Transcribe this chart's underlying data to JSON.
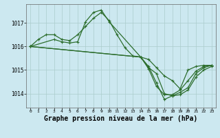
{
  "background_color": "#cce8f0",
  "grid_color": "#aacccc",
  "line_color": "#2d6e2d",
  "marker": "+",
  "markersize": 3,
  "linewidth": 0.9,
  "title": "Graphe pression niveau de la mer (hPa)",
  "title_fontsize": 7,
  "xlim": [
    -0.5,
    23.5
  ],
  "ylim": [
    1013.4,
    1017.8
  ],
  "xticks": [
    0,
    1,
    2,
    3,
    4,
    5,
    6,
    7,
    8,
    9,
    10,
    11,
    12,
    13,
    14,
    15,
    16,
    17,
    18,
    19,
    20,
    21,
    22,
    23
  ],
  "yticks": [
    1014,
    1015,
    1016,
    1017
  ],
  "lines": [
    {
      "x": [
        0,
        1,
        2,
        3,
        4,
        5,
        6,
        7,
        8,
        9,
        10,
        11,
        12,
        13,
        14,
        15,
        16,
        17,
        18,
        19,
        20,
        21,
        22,
        23
      ],
      "y": [
        1016.0,
        1016.3,
        1016.5,
        1016.5,
        1016.3,
        1016.25,
        1016.5,
        1016.85,
        1017.2,
        1017.45,
        1017.1,
        1016.5,
        1015.95,
        1015.6,
        1015.55,
        1015.45,
        1015.1,
        1014.75,
        1014.55,
        1014.2,
        1015.0,
        1015.15,
        1015.2,
        1015.2
      ]
    },
    {
      "x": [
        0,
        3,
        4,
        5,
        6,
        7,
        8,
        9,
        10,
        14,
        15,
        16,
        17,
        18,
        19,
        20,
        21,
        22,
        23
      ],
      "y": [
        1016.0,
        1016.3,
        1016.2,
        1016.15,
        1016.2,
        1017.05,
        1017.45,
        1017.55,
        1017.05,
        1015.55,
        1015.1,
        1014.85,
        1014.0,
        1013.9,
        1013.95,
        1014.15,
        1014.7,
        1015.0,
        1015.15
      ]
    },
    {
      "x": [
        0,
        14,
        15,
        16,
        17,
        18,
        19,
        20,
        21,
        22,
        23
      ],
      "y": [
        1016.0,
        1015.55,
        1015.15,
        1014.45,
        1013.75,
        1013.9,
        1014.05,
        1014.25,
        1014.85,
        1015.1,
        1015.2
      ]
    },
    {
      "x": [
        0,
        14,
        15,
        16,
        17,
        18,
        19,
        20,
        21,
        22,
        23
      ],
      "y": [
        1016.0,
        1015.55,
        1015.05,
        1014.3,
        1013.95,
        1013.95,
        1014.15,
        1014.55,
        1014.95,
        1015.15,
        1015.2
      ]
    }
  ]
}
